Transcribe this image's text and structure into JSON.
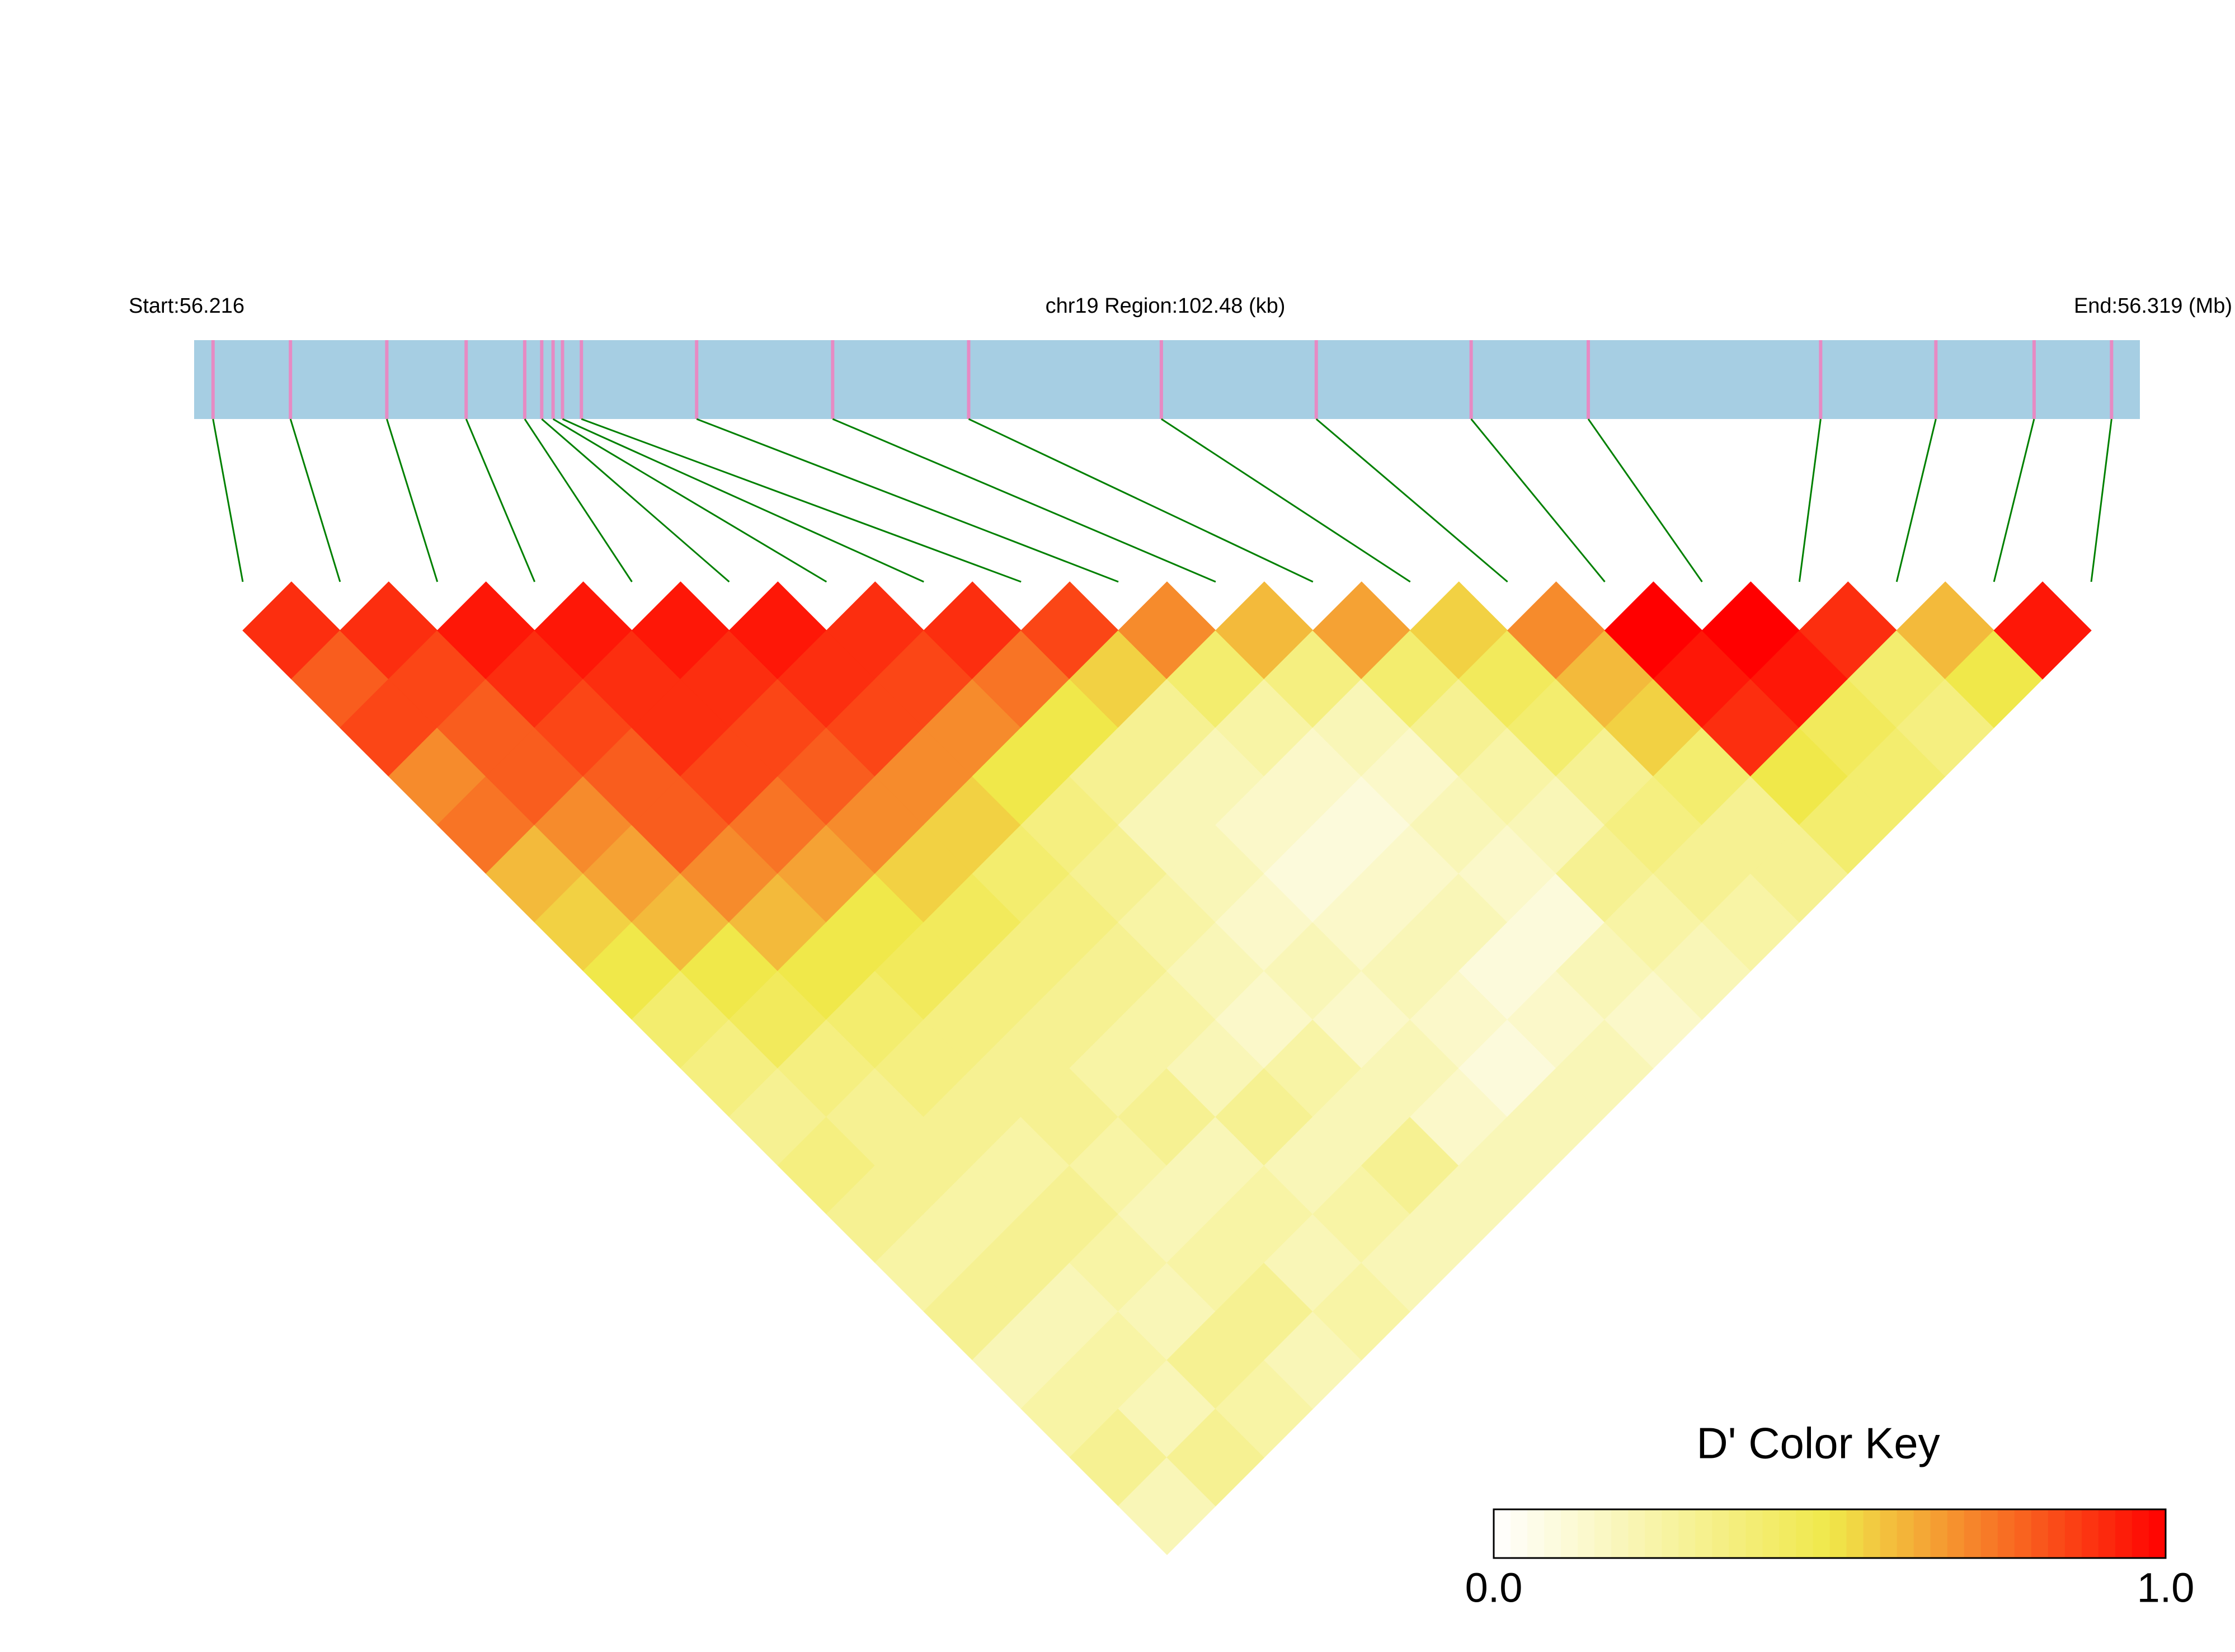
{
  "chart_data": {
    "type": "heatmap",
    "start_label": "Start:56.216",
    "region_label": "chr19 Region:102.48 (kb)",
    "end_label": "End:56.319 (Mb)",
    "xlim": [
      56.216,
      56.319
    ],
    "positions": [
      56.217,
      56.2211,
      56.2262,
      56.2304,
      56.2335,
      56.2344,
      56.235,
      56.2355,
      56.2365,
      56.2426,
      56.2498,
      56.257,
      56.2672,
      56.2754,
      56.2836,
      56.2898,
      56.3021,
      56.3082,
      56.3134,
      56.3175
    ],
    "dprime": [
      [
        0.9,
        0.8,
        0.85,
        0.7,
        0.75,
        0.6,
        0.55,
        0.5,
        0.4,
        0.35,
        0.3,
        0.35,
        0.3,
        0.25,
        0.3,
        0.2,
        0.25,
        0.3,
        0.2
      ],
      [
        0.9,
        0.85,
        0.8,
        0.8,
        0.7,
        0.65,
        0.6,
        0.5,
        0.45,
        0.35,
        0.3,
        0.3,
        0.25,
        0.3,
        0.2,
        0.25,
        0.2,
        0.3
      ],
      [
        0.95,
        0.9,
        0.85,
        0.8,
        0.8,
        0.7,
        0.6,
        0.5,
        0.4,
        0.35,
        0.3,
        0.25,
        0.3,
        0.25,
        0.2,
        0.3,
        0.25
      ],
      [
        0.95,
        0.9,
        0.9,
        0.85,
        0.75,
        0.65,
        0.5,
        0.45,
        0.35,
        0.3,
        0.3,
        0.25,
        0.2,
        0.25,
        0.3,
        0.2
      ],
      [
        0.95,
        0.9,
        0.85,
        0.8,
        0.7,
        0.55,
        0.45,
        0.35,
        0.3,
        0.25,
        0.3,
        0.2,
        0.25,
        0.2,
        0.25
      ],
      [
        0.95,
        0.9,
        0.85,
        0.7,
        0.55,
        0.4,
        0.35,
        0.3,
        0.25,
        0.2,
        0.3,
        0.2,
        0.25,
        0.2
      ],
      [
        0.9,
        0.85,
        0.7,
        0.5,
        0.35,
        0.3,
        0.25,
        0.2,
        0.15,
        0.25,
        0.2,
        0.3,
        0.2
      ],
      [
        0.9,
        0.75,
        0.5,
        0.3,
        0.2,
        0.2,
        0.15,
        0.2,
        0.15,
        0.2,
        0.15,
        0.2
      ],
      [
        0.85,
        0.55,
        0.3,
        0.2,
        0.15,
        0.1,
        0.15,
        0.2,
        0.15,
        0.1,
        0.2
      ],
      [
        0.7,
        0.4,
        0.25,
        0.15,
        0.1,
        0.15,
        0.2,
        0.1,
        0.15,
        0.2
      ],
      [
        0.6,
        0.35,
        0.2,
        0.15,
        0.2,
        0.15,
        0.1,
        0.2,
        0.15
      ],
      [
        0.65,
        0.4,
        0.3,
        0.25,
        0.2,
        0.3,
        0.25,
        0.2
      ],
      [
        0.55,
        0.45,
        0.4,
        0.3,
        0.35,
        0.3,
        0.25
      ],
      [
        0.7,
        0.6,
        0.55,
        0.4,
        0.3,
        0.3
      ],
      [
        1,
        0.95,
        0.9,
        0.5,
        0.4
      ],
      [
        1,
        0.95,
        0.45,
        0.4
      ],
      [
        0.9,
        0.4,
        0.35
      ],
      [
        0.6,
        0.5
      ],
      [
        0.95
      ]
    ],
    "colors": [
      "#ffffff",
      "#f0e84a",
      "#ff0000"
    ],
    "bar_color": "#a6cee3",
    "snp_color": "#e78ac3",
    "link_color": "#008000",
    "key_title": "D' Color Key",
    "key_lim": [
      0,
      1
    ],
    "key_ticks": [
      {
        "value": 0,
        "label": "0.0"
      },
      {
        "value": 1,
        "label": "1.0"
      }
    ]
  }
}
